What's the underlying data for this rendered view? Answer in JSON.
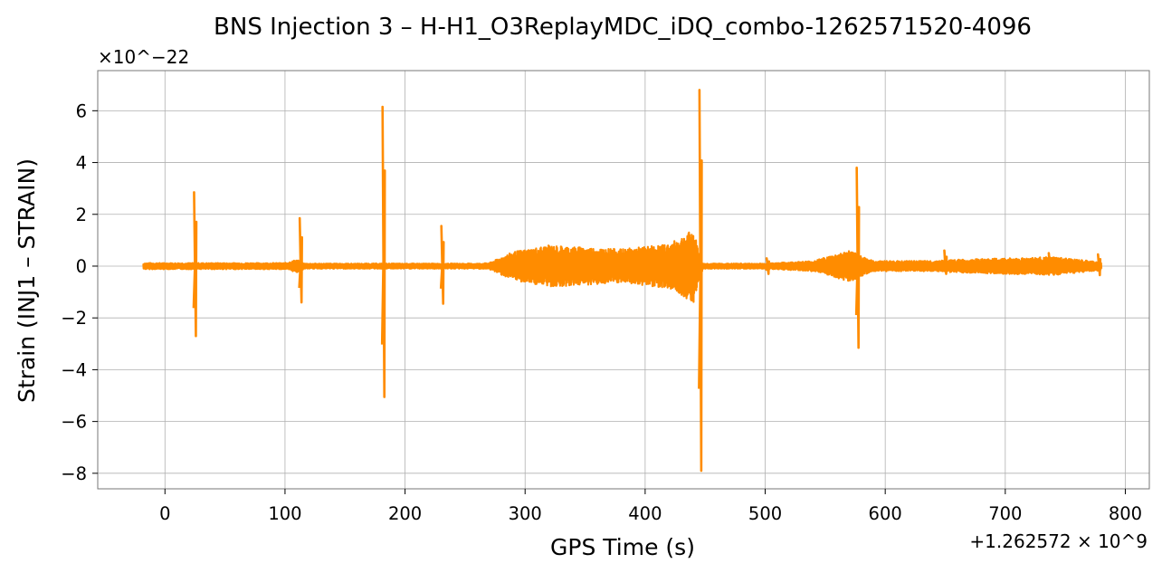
{
  "chart_data": {
    "type": "line",
    "title": "BNS Injection 3 – H-H1_O3ReplayMDC_iDQ_combo-1262571520-4096",
    "xlabel": "GPS Time (s)",
    "ylabel": "Strain (INJ1 – STRAIN)",
    "x_offset_label": "+1.262572 × 10^9",
    "y_scale_label": "×10^−22",
    "xlim": [
      -56,
      820
    ],
    "ylim": [
      -8.6,
      7.55
    ],
    "x_ticks": [
      0,
      100,
      200,
      300,
      400,
      500,
      600,
      700,
      800
    ],
    "x_tick_labels": [
      "0",
      "100",
      "200",
      "300",
      "400",
      "500",
      "600",
      "700",
      "800"
    ],
    "y_ticks": [
      -8,
      -6,
      -4,
      -2,
      0,
      2,
      4,
      6
    ],
    "y_tick_labels": [
      "−8",
      "−6",
      "−4",
      "−2",
      "0",
      "2",
      "4",
      "6"
    ],
    "grid": true,
    "series": [
      {
        "color": "#ff8c00",
        "x_range": [
          -18,
          780
        ],
        "baseline_amplitude": 0.1,
        "spikes": [
          {
            "x": 25,
            "max": 2.85,
            "min": -2.7
          },
          {
            "x": 113,
            "max": 1.85,
            "min": -1.4
          },
          {
            "x": 182,
            "max": 6.15,
            "min": -5.05
          },
          {
            "x": 231,
            "max": 1.55,
            "min": -1.45
          },
          {
            "x": 446,
            "max": 6.8,
            "min": -7.9
          },
          {
            "x": 502,
            "max": 0.3,
            "min": -0.3
          },
          {
            "x": 577,
            "max": 3.8,
            "min": -3.15
          },
          {
            "x": 650,
            "max": 0.6,
            "min": -0.3
          },
          {
            "x": 737,
            "max": 0.5,
            "min": -0.25
          },
          {
            "x": 778,
            "max": 0.45,
            "min": -0.35
          }
        ],
        "envelope": [
          {
            "x": -18,
            "amp": 0.12
          },
          {
            "x": 100,
            "amp": 0.12
          },
          {
            "x": 110,
            "amp": 0.25
          },
          {
            "x": 118,
            "amp": 0.05
          },
          {
            "x": 240,
            "amp": 0.05
          },
          {
            "x": 270,
            "amp": 0.12
          },
          {
            "x": 290,
            "amp": 0.55
          },
          {
            "x": 320,
            "amp": 0.8
          },
          {
            "x": 360,
            "amp": 0.7
          },
          {
            "x": 380,
            "amp": 0.65
          },
          {
            "x": 420,
            "amp": 0.85
          },
          {
            "x": 440,
            "amp": 1.4
          },
          {
            "x": 448,
            "amp": 0.08
          },
          {
            "x": 500,
            "amp": 0.1
          },
          {
            "x": 540,
            "amp": 0.2
          },
          {
            "x": 570,
            "amp": 0.6
          },
          {
            "x": 590,
            "amp": 0.2
          },
          {
            "x": 640,
            "amp": 0.2
          },
          {
            "x": 660,
            "amp": 0.25
          },
          {
            "x": 700,
            "amp": 0.3
          },
          {
            "x": 740,
            "amp": 0.35
          },
          {
            "x": 780,
            "amp": 0.15
          }
        ]
      }
    ]
  }
}
